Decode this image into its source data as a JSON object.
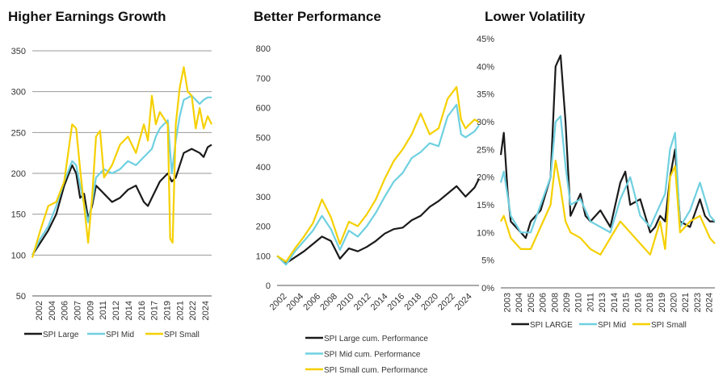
{
  "colors": {
    "large": "#1a1a1a",
    "mid": "#6fd0e0",
    "small": "#f5d000"
  },
  "chart_data": [
    {
      "type": "line",
      "title": "Higher Earnings Growth",
      "ylim": [
        50,
        350
      ],
      "yticks": [
        50,
        100,
        150,
        200,
        250,
        300,
        350
      ],
      "ytick_labels": [
        "50",
        "100",
        "150",
        "200",
        "250",
        "300",
        "350"
      ],
      "xlim": [
        2002,
        2024.5
      ],
      "xtick_labels": [
        "2002",
        "2004",
        "2006",
        "2007",
        "2009",
        "2011",
        "2012",
        "2014",
        "2016",
        "2017",
        "2019",
        "2021",
        "2022",
        "2024"
      ],
      "grid": true,
      "legend": "bottom",
      "series": [
        {
          "name": "SPI Large",
          "key": "large",
          "x": [
            2002,
            2003,
            2004,
            2005,
            2006,
            2007,
            2007.5,
            2008,
            2008.5,
            2009,
            2009.5,
            2010,
            2011,
            2012,
            2013,
            2014,
            2015,
            2016,
            2016.5,
            2017,
            2018,
            2019,
            2019.5,
            2020,
            2020.5,
            2021,
            2022,
            2023,
            2023.5,
            2024,
            2024.5
          ],
          "y": [
            100,
            115,
            130,
            150,
            185,
            210,
            200,
            170,
            175,
            145,
            160,
            185,
            175,
            165,
            170,
            180,
            185,
            165,
            160,
            170,
            190,
            200,
            190,
            195,
            210,
            225,
            230,
            225,
            220,
            232,
            235
          ]
        },
        {
          "name": "SPI Mid",
          "key": "mid",
          "x": [
            2002,
            2003,
            2004,
            2005,
            2006,
            2007,
            2007.5,
            2008,
            2009,
            2009.5,
            2010,
            2011,
            2012,
            2013,
            2014,
            2015,
            2016,
            2017,
            2017.5,
            2018,
            2019,
            2019.5,
            2020,
            2020.5,
            2021,
            2022,
            2023,
            2023.5,
            2024,
            2024.5
          ],
          "y": [
            100,
            120,
            135,
            160,
            190,
            215,
            210,
            185,
            140,
            165,
            195,
            205,
            200,
            205,
            215,
            210,
            220,
            230,
            245,
            255,
            265,
            200,
            240,
            270,
            290,
            295,
            285,
            290,
            293,
            293
          ]
        },
        {
          "name": "SPI Small",
          "key": "small",
          "x": [
            2002,
            2003,
            2004,
            2005,
            2006,
            2007,
            2007.5,
            2008,
            2009,
            2009.5,
            2010,
            2010.5,
            2011,
            2012,
            2013,
            2014,
            2015,
            2016,
            2016.5,
            2017,
            2017.5,
            2018,
            2019,
            2019.3,
            2019.6,
            2020,
            2020.5,
            2021,
            2021.5,
            2022,
            2022.5,
            2023,
            2023.5,
            2024,
            2024.5
          ],
          "y": [
            97,
            130,
            160,
            165,
            190,
            260,
            255,
            205,
            115,
            170,
            245,
            252,
            195,
            210,
            235,
            245,
            225,
            260,
            240,
            295,
            260,
            275,
            260,
            120,
            115,
            260,
            305,
            330,
            300,
            295,
            255,
            280,
            255,
            270,
            260
          ]
        }
      ]
    },
    {
      "type": "line",
      "title": "Better Performance",
      "ylim": [
        0,
        800
      ],
      "yticks": [
        0,
        100,
        200,
        300,
        400,
        500,
        600,
        700,
        800
      ],
      "ytick_labels": [
        "0",
        "100",
        "200",
        "300",
        "400",
        "500",
        "600",
        "700",
        "800"
      ],
      "xlim": [
        2002,
        2024.5
      ],
      "xtick_labels": [
        "2002",
        "2004",
        "2006",
        "2008",
        "2010",
        "2012",
        "2014",
        "2016",
        "2018",
        "2020",
        "2022",
        "2024"
      ],
      "grid": false,
      "legend": "bottom",
      "series": [
        {
          "name": "SPI Large cum. Performance",
          "key": "large",
          "x": [
            2002,
            2003,
            2004,
            2005,
            2006,
            2007,
            2008,
            2009,
            2010,
            2011,
            2012,
            2013,
            2014,
            2015,
            2016,
            2017,
            2018,
            2019,
            2020,
            2021,
            2022,
            2023,
            2024,
            2024.5
          ],
          "y": [
            100,
            75,
            95,
            115,
            140,
            165,
            150,
            90,
            125,
            115,
            130,
            150,
            175,
            190,
            195,
            220,
            235,
            265,
            285,
            310,
            335,
            300,
            330,
            360
          ]
        },
        {
          "name": "SPI Mid cum. Performance",
          "key": "mid",
          "x": [
            2002,
            2003,
            2004,
            2005,
            2006,
            2007,
            2008,
            2009,
            2010,
            2011,
            2012,
            2013,
            2014,
            2015,
            2016,
            2017,
            2018,
            2019,
            2020,
            2021,
            2022,
            2022.5,
            2023,
            2024,
            2024.5
          ],
          "y": [
            100,
            70,
            115,
            150,
            185,
            235,
            190,
            120,
            185,
            165,
            200,
            245,
            300,
            350,
            380,
            430,
            450,
            480,
            470,
            570,
            610,
            510,
            500,
            520,
            540
          ]
        },
        {
          "name": "SPI Small cum. Performance",
          "key": "small",
          "x": [
            2002,
            2003,
            2004,
            2005,
            2006,
            2007,
            2008,
            2009,
            2010,
            2011,
            2012,
            2013,
            2014,
            2015,
            2016,
            2017,
            2018,
            2019,
            2020,
            2021,
            2022,
            2022.5,
            2023,
            2024,
            2024.5
          ],
          "y": [
            100,
            80,
            125,
            165,
            210,
            290,
            230,
            140,
            215,
            200,
            240,
            290,
            360,
            420,
            460,
            510,
            580,
            510,
            530,
            630,
            670,
            560,
            530,
            560,
            550
          ]
        }
      ]
    },
    {
      "type": "line",
      "title": "Lower Volatility",
      "ylim": [
        0,
        45
      ],
      "yticks": [
        0,
        5,
        10,
        15,
        20,
        25,
        30,
        35,
        40,
        45
      ],
      "ytick_labels": [
        "0%",
        "5%",
        "10%",
        "15%",
        "20%",
        "25%",
        "30%",
        "35%",
        "40%",
        "45%"
      ],
      "xlim": [
        2003,
        2024.5
      ],
      "xtick_labels": [
        "2003",
        "2004",
        "2005",
        "2006",
        "2008",
        "2009",
        "2010",
        "2011",
        "2013",
        "2014",
        "2015",
        "2016",
        "2018",
        "2019",
        "2020",
        "2021",
        "2023",
        "2024"
      ],
      "grid": false,
      "legend": "bottom",
      "series": [
        {
          "name": "SPI LARGE",
          "key": "large",
          "x": [
            2003,
            2003.3,
            2003.7,
            2004,
            2005,
            2005.5,
            2006,
            2007,
            2008,
            2008.5,
            2009,
            2009.5,
            2010,
            2011,
            2011.5,
            2012,
            2013,
            2014,
            2015,
            2015.5,
            2016,
            2017,
            2018,
            2018.5,
            2019,
            2019.5,
            2020,
            2020.5,
            2021,
            2022,
            2023,
            2023.5,
            2024,
            2024.5
          ],
          "y": [
            24,
            28,
            17,
            12,
            10,
            9,
            12,
            14,
            20,
            40,
            42,
            30,
            13,
            17,
            13,
            12,
            14,
            11,
            19,
            21,
            15,
            16,
            10,
            11,
            13,
            12,
            20,
            25,
            12,
            11,
            16,
            13,
            12,
            12
          ]
        },
        {
          "name": "SPI Mid",
          "key": "mid",
          "x": [
            2003,
            2003.3,
            2004,
            2005,
            2006,
            2007,
            2008,
            2008.5,
            2009,
            2009.5,
            2010,
            2011,
            2012,
            2013,
            2014,
            2015,
            2016,
            2017,
            2018,
            2019,
            2019.5,
            2020,
            2020.5,
            2021,
            2022,
            2023,
            2023.5,
            2024,
            2024.5
          ],
          "y": [
            19,
            21,
            13,
            10,
            10,
            15,
            20,
            30,
            31,
            22,
            15,
            16,
            12,
            11,
            10,
            16,
            20,
            13,
            11,
            15,
            17,
            25,
            28,
            11,
            14,
            19,
            16,
            13,
            12
          ]
        },
        {
          "name": "SPI Small",
          "key": "small",
          "x": [
            2003,
            2003.3,
            2004,
            2005,
            2006,
            2007,
            2008,
            2008.5,
            2009,
            2009.5,
            2010,
            2011,
            2012,
            2013,
            2014,
            2015,
            2016,
            2017,
            2018,
            2019,
            2019.5,
            2020,
            2020.5,
            2021,
            2022,
            2023,
            2023.5,
            2024,
            2024.5
          ],
          "y": [
            12,
            13,
            9,
            7,
            7,
            11,
            15,
            23,
            18,
            12,
            10,
            9,
            7,
            6,
            9,
            12,
            10,
            8,
            6,
            12,
            7,
            20,
            22,
            10,
            12,
            13,
            11,
            9,
            8
          ]
        }
      ]
    }
  ]
}
